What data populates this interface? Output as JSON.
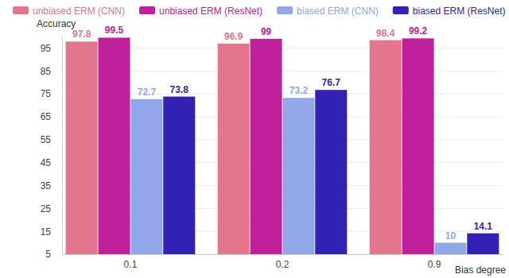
{
  "chart_data": {
    "type": "bar",
    "x_label": "Bias degree",
    "y_label": "Accuracy",
    "categories": [
      "0.1",
      "0.2",
      "0.9"
    ],
    "series": [
      {
        "name": "unbiased ERM (CNN)",
        "color": "#e3768c",
        "values": [
          97.8,
          96.9,
          98.4
        ]
      },
      {
        "name": "unbiased ERM (ResNet)",
        "color": "#c1209d",
        "values": [
          99.5,
          99,
          99.2
        ]
      },
      {
        "name": "biased ERM (CNN)",
        "color": "#91a7e8",
        "values": [
          72.7,
          73.2,
          10
        ]
      },
      {
        "name": "biased ERM (ResNet)",
        "color": "#3222b4",
        "values": [
          73.8,
          76.7,
          14.1
        ]
      }
    ],
    "ylim": [
      5,
      100
    ],
    "yticks": [
      5,
      15,
      25,
      35,
      45,
      55,
      65,
      75,
      85,
      95
    ],
    "grid": true,
    "legend": "top",
    "data_labels": true
  }
}
